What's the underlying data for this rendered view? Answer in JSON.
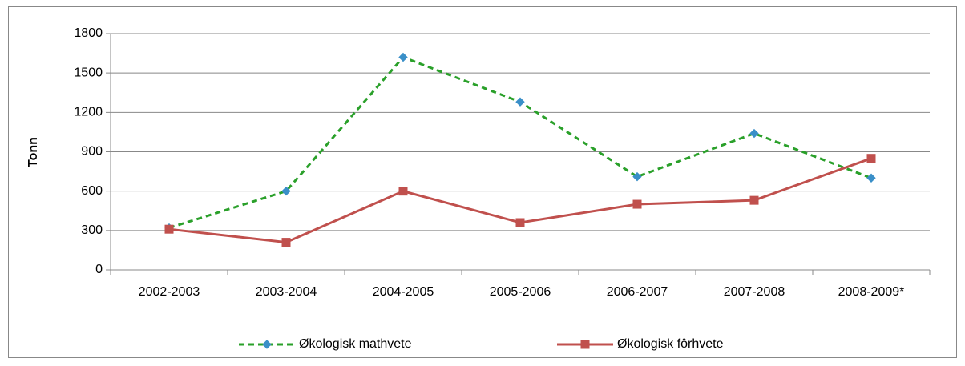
{
  "chart_data": {
    "type": "line",
    "y_label": "Tonn",
    "categories": [
      "2002-2003",
      "2003-2004",
      "2004-2005",
      "2005-2006",
      "2006-2007",
      "2007-2008",
      "2008-2009*"
    ],
    "series": [
      {
        "name": "Økologisk mathvete",
        "color": "#2aa02a",
        "style": "dashed",
        "marker": "diamond",
        "marker_color": "#3a8fc8",
        "values": [
          320,
          600,
          1620,
          1280,
          710,
          1040,
          700
        ]
      },
      {
        "name": "Økologisk fôrhvete",
        "color": "#c0504d",
        "style": "solid",
        "marker": "square",
        "marker_color": "#c0504d",
        "values": [
          310,
          210,
          600,
          360,
          500,
          530,
          850
        ]
      }
    ],
    "ylim": [
      0,
      1800
    ],
    "yticks": [
      0,
      300,
      600,
      900,
      1200,
      1500,
      1800
    ],
    "grid": true,
    "legend": "bottom"
  }
}
